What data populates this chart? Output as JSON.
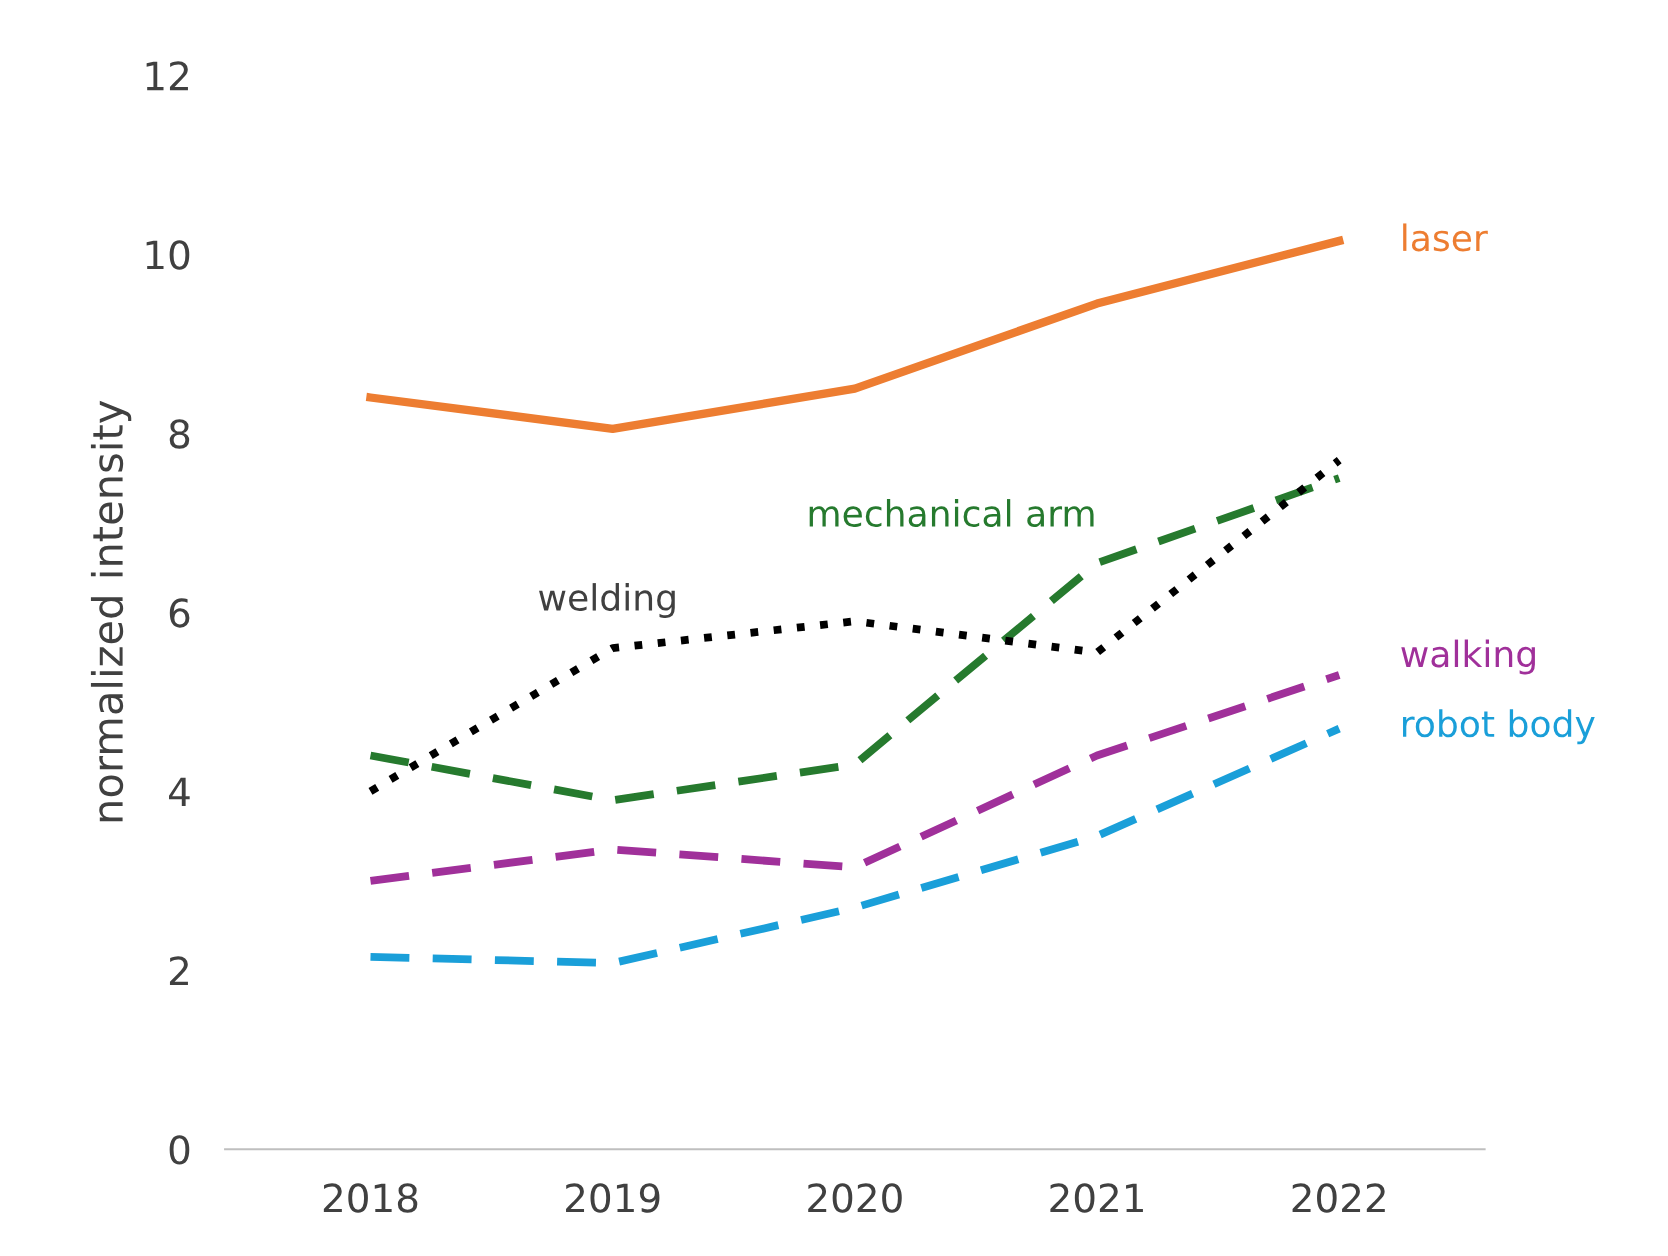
{
  "chart_data": {
    "type": "line",
    "ylabel": "normalized intensity",
    "categories": [
      "2018",
      "2019",
      "2020",
      "2021",
      "2022"
    ],
    "ylim": [
      0,
      12
    ],
    "yticks": [
      0,
      2,
      4,
      6,
      8,
      10,
      12
    ],
    "grid": false,
    "series": [
      {
        "name": "laser",
        "color": "#ed7d31",
        "line_style": "solid",
        "values": [
          8.4,
          8.05,
          8.5,
          9.45,
          10.15
        ]
      },
      {
        "name": "mechanical arm",
        "color": "#267a2e",
        "line_style": "dashed",
        "values": [
          4.4,
          3.9,
          4.3,
          6.55,
          7.5
        ]
      },
      {
        "name": "welding",
        "color": "#000000",
        "line_style": "dotted",
        "values": [
          4.0,
          5.6,
          5.9,
          5.55,
          7.7
        ]
      },
      {
        "name": "walking",
        "color": "#a0309a",
        "line_style": "dashed",
        "values": [
          3.0,
          3.35,
          3.15,
          4.4,
          5.3
        ]
      },
      {
        "name": "robot body",
        "color": "#1a9fd9",
        "line_style": "dashed",
        "values": [
          2.15,
          2.08,
          2.7,
          3.5,
          4.7
        ]
      }
    ]
  }
}
